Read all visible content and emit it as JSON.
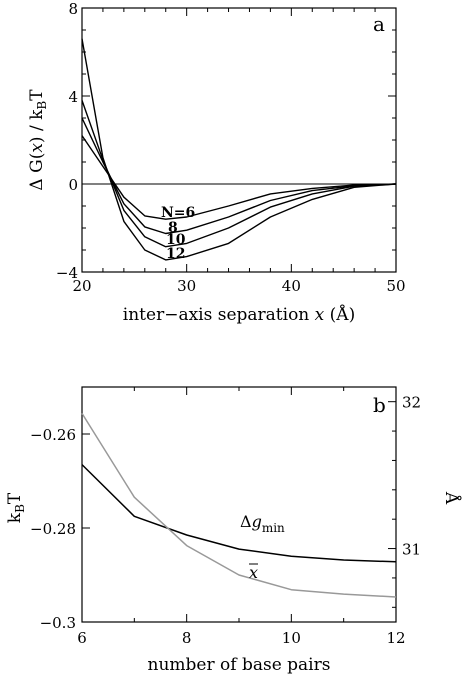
{
  "chart_data": [
    {
      "type": "line",
      "panel_label": "a",
      "title": "",
      "xlabel": "inter−axis separation x (Å)",
      "ylabel": "ΔG(x) / k_BT",
      "xlim": [
        20,
        50
      ],
      "ylim": [
        -4,
        8
      ],
      "xticks": [
        20,
        30,
        40,
        50
      ],
      "yticks": [
        -4,
        0,
        4,
        8
      ],
      "xtick_labels": [
        "20",
        "30",
        "40",
        "50"
      ],
      "ytick_labels": [
        "−4",
        "0",
        "4",
        "8"
      ],
      "zero_line": true,
      "series": [
        {
          "name": "N=6",
          "x": [
            20,
            22,
            24,
            26,
            28,
            30,
            34,
            38,
            42,
            46,
            50
          ],
          "values": [
            2.2,
            0.8,
            -0.6,
            -1.45,
            -1.6,
            -1.5,
            -1.0,
            -0.45,
            -0.2,
            -0.05,
            0
          ]
        },
        {
          "name": "8",
          "x": [
            20,
            22,
            24,
            26,
            28,
            30,
            34,
            38,
            42,
            46,
            50
          ],
          "values": [
            3.0,
            1.0,
            -0.9,
            -1.95,
            -2.25,
            -2.1,
            -1.5,
            -0.75,
            -0.3,
            -0.08,
            0
          ]
        },
        {
          "name": "10",
          "x": [
            20,
            22,
            24,
            26,
            28,
            30,
            34,
            38,
            42,
            46,
            50
          ],
          "values": [
            3.8,
            1.1,
            -1.2,
            -2.4,
            -2.85,
            -2.7,
            -2.0,
            -1.05,
            -0.45,
            -0.1,
            0
          ]
        },
        {
          "name": "12",
          "x": [
            20,
            22,
            24,
            26,
            28,
            30,
            34,
            38,
            42,
            46,
            50
          ],
          "values": [
            6.6,
            1.2,
            -1.7,
            -3.0,
            -3.45,
            -3.3,
            -2.7,
            -1.5,
            -0.7,
            -0.15,
            0
          ]
        }
      ]
    },
    {
      "type": "line",
      "panel_label": "b",
      "title": "",
      "xlabel": "number of base pairs",
      "ylabel_left": "k_BT",
      "ylabel_right": "Å",
      "xlim": [
        6,
        12
      ],
      "ylim_left": [
        -0.3,
        -0.25
      ],
      "ylim_right": [
        30.5,
        32.1
      ],
      "xticks": [
        6,
        8,
        10,
        12
      ],
      "xtick_labels": [
        "6",
        "8",
        "10",
        "12"
      ],
      "yticks_left": [
        -0.3,
        -0.28,
        -0.26
      ],
      "ytick_labels_left": [
        "−0.3",
        "−0.28",
        "−0.26"
      ],
      "yticks_right": [
        31,
        32
      ],
      "ytick_labels_right": [
        "31",
        "32"
      ],
      "series": [
        {
          "name": "Δg_min",
          "axis": "left",
          "color": "#000000",
          "x": [
            6,
            7,
            8,
            9,
            10,
            11,
            12
          ],
          "values": [
            -0.2665,
            -0.2775,
            -0.2815,
            -0.2845,
            -0.286,
            -0.2868,
            -0.2872
          ]
        },
        {
          "name": "x̄",
          "axis": "right",
          "color": "#999999",
          "x": [
            6,
            7,
            8,
            9,
            10,
            11,
            12
          ],
          "values": [
            31.92,
            31.35,
            31.02,
            30.82,
            30.72,
            30.69,
            30.67
          ]
        }
      ]
    }
  ]
}
